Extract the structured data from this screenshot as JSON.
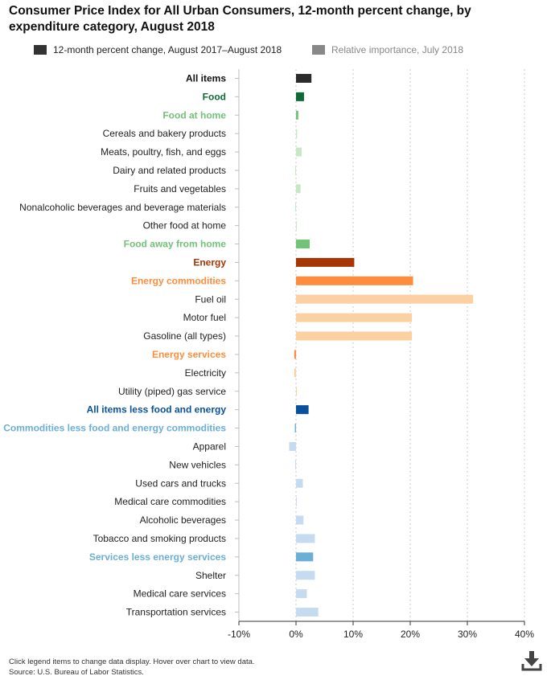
{
  "chart_data": {
    "type": "bar",
    "orientation": "horizontal",
    "title": "Consumer Price Index for All Urban Consumers, 12-month percent change, by expenditure category, August 2018",
    "xlabel": "",
    "ylabel": "",
    "xlim": [
      -10,
      40
    ],
    "x_ticks": [
      "-10%",
      "0%",
      "10%",
      "20%",
      "30%",
      "40%"
    ],
    "x_tick_values": [
      -10,
      0,
      10,
      20,
      30,
      40
    ],
    "grid": "vertical dotted",
    "legend_placement": "top",
    "series": [
      {
        "name": "12-month percent change, August 2017–August 2018",
        "color": "#333333",
        "visible": true
      },
      {
        "name": "Relative importance, July 2018",
        "color": "#888888",
        "visible": false
      }
    ],
    "categories": [
      {
        "label": "All items",
        "value": 2.7,
        "bar_color": "#2b2b2b",
        "label_color": "#111111",
        "bold": true
      },
      {
        "label": "Food",
        "value": 1.4,
        "bar_color": "#0e6a35",
        "label_color": "#0e6a35",
        "bold": true
      },
      {
        "label": "Food at home",
        "value": 0.4,
        "bar_color": "#71c378",
        "label_color": "#71c378",
        "bold": true
      },
      {
        "label": "Cereals and bakery products",
        "value": 0.2,
        "bar_color": "#c6e9c4",
        "label_color": "#222222",
        "bold": false
      },
      {
        "label": "Meats, poultry, fish, and eggs",
        "value": 1.0,
        "bar_color": "#c6e9c4",
        "label_color": "#222222",
        "bold": false
      },
      {
        "label": "Dairy and related products",
        "value": -0.1,
        "bar_color": "#c6e9c4",
        "label_color": "#222222",
        "bold": false
      },
      {
        "label": "Fruits and vegetables",
        "value": 0.8,
        "bar_color": "#c6e9c4",
        "label_color": "#222222",
        "bold": false
      },
      {
        "label": "Nonalcoholic beverages and beverage materials",
        "value": -0.1,
        "bar_color": "#c6e9c4",
        "label_color": "#222222",
        "bold": false
      },
      {
        "label": "Other food at home",
        "value": 0.1,
        "bar_color": "#c6e9c4",
        "label_color": "#222222",
        "bold": false
      },
      {
        "label": "Food away from home",
        "value": 2.4,
        "bar_color": "#71c378",
        "label_color": "#71c378",
        "bold": true
      },
      {
        "label": "Energy",
        "value": 10.2,
        "bar_color": "#a63603",
        "label_color": "#a63603",
        "bold": true
      },
      {
        "label": "Energy commodities",
        "value": 20.5,
        "bar_color": "#fd8d3c",
        "label_color": "#fd8d3c",
        "bold": true
      },
      {
        "label": "Fuel oil",
        "value": 31.0,
        "bar_color": "#fdd0a2",
        "label_color": "#222222",
        "bold": false
      },
      {
        "label": "Motor fuel",
        "value": 20.3,
        "bar_color": "#fdd0a2",
        "label_color": "#222222",
        "bold": false
      },
      {
        "label": "Gasoline (all types)",
        "value": 20.3,
        "bar_color": "#fdd0a2",
        "label_color": "#222222",
        "bold": false
      },
      {
        "label": "Energy services",
        "value": -0.3,
        "bar_color": "#fd8d3c",
        "label_color": "#fd8d3c",
        "bold": true
      },
      {
        "label": "Electricity",
        "value": -0.3,
        "bar_color": "#fdd0a2",
        "label_color": "#222222",
        "bold": false
      },
      {
        "label": "Utility (piped) gas service",
        "value": 0.1,
        "bar_color": "#fdd0a2",
        "label_color": "#222222",
        "bold": false
      },
      {
        "label": "All items less food and energy",
        "value": 2.2,
        "bar_color": "#08519c",
        "label_color": "#08519c",
        "bold": true
      },
      {
        "label": "Commodities less food and energy commodities",
        "value": -0.2,
        "bar_color": "#6baed6",
        "label_color": "#6baed6",
        "bold": true
      },
      {
        "label": "Apparel",
        "value": -1.2,
        "bar_color": "#c6dbef",
        "label_color": "#222222",
        "bold": false
      },
      {
        "label": "New vehicles",
        "value": -0.1,
        "bar_color": "#c6dbef",
        "label_color": "#222222",
        "bold": false
      },
      {
        "label": "Used cars and trucks",
        "value": 1.2,
        "bar_color": "#c6dbef",
        "label_color": "#222222",
        "bold": false
      },
      {
        "label": "Medical care commodities",
        "value": 0.1,
        "bar_color": "#c6dbef",
        "label_color": "#222222",
        "bold": false
      },
      {
        "label": "Alcoholic beverages",
        "value": 1.3,
        "bar_color": "#c6dbef",
        "label_color": "#222222",
        "bold": false
      },
      {
        "label": "Tobacco and smoking products",
        "value": 3.3,
        "bar_color": "#c6dbef",
        "label_color": "#222222",
        "bold": false
      },
      {
        "label": "Services less energy services",
        "value": 3.0,
        "bar_color": "#6baed6",
        "label_color": "#6baed6",
        "bold": true
      },
      {
        "label": "Shelter",
        "value": 3.3,
        "bar_color": "#c6dbef",
        "label_color": "#222222",
        "bold": false
      },
      {
        "label": "Medical care services",
        "value": 1.9,
        "bar_color": "#c6dbef",
        "label_color": "#222222",
        "bold": false
      },
      {
        "label": "Transportation services",
        "value": 3.9,
        "bar_color": "#c6dbef",
        "label_color": "#222222",
        "bold": false
      }
    ]
  },
  "legend": {
    "items": [
      {
        "label": "12-month percent change, August 2017–August 2018",
        "color": "#333333",
        "text_color": "#222222"
      },
      {
        "label": "Relative importance, July 2018",
        "color": "#888888",
        "text_color": "#888888"
      }
    ]
  },
  "footer": {
    "note": "Click legend items to change data display. Hover over chart to view data.",
    "source": "Source: U.S. Bureau of Labor Statistics."
  },
  "icons": {
    "download": "download-icon"
  }
}
